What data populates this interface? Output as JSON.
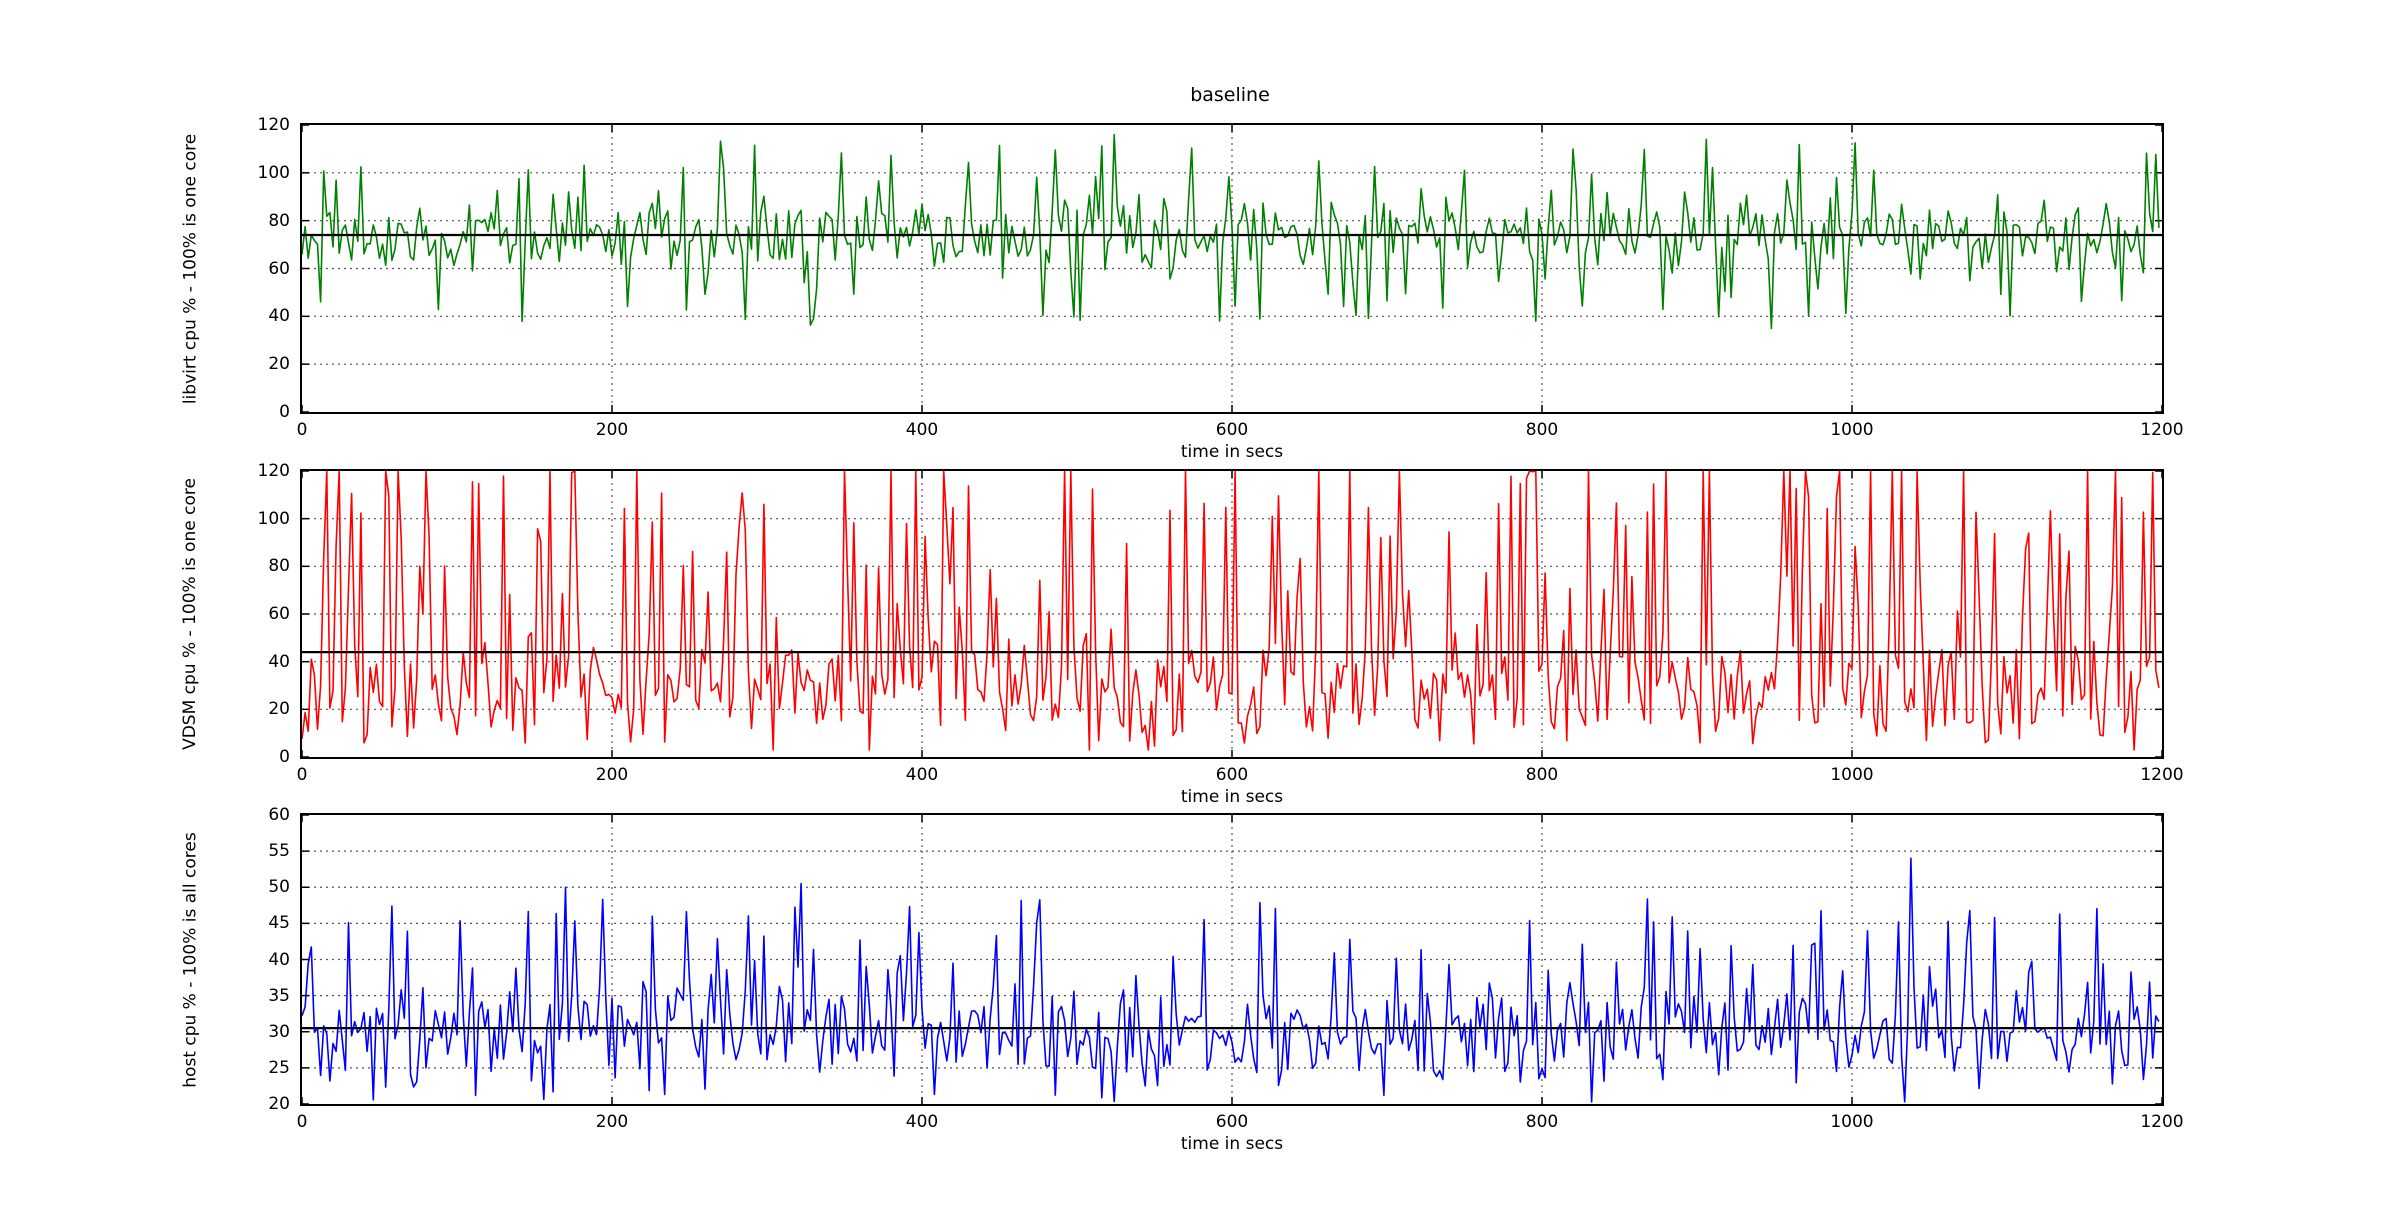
{
  "figure": {
    "background": "#ffffff",
    "title": "baseline"
  },
  "chart_data": [
    {
      "id": "libvirt-cpu",
      "type": "line",
      "title": "baseline",
      "xlabel": "time in secs",
      "ylabel": "libvirt cpu % - 100% is one core",
      "xlim": [
        0,
        1200
      ],
      "ylim": [
        0,
        120
      ],
      "xticks": [
        0,
        200,
        400,
        600,
        800,
        1000,
        1200
      ],
      "yticks": [
        0,
        20,
        40,
        60,
        80,
        100,
        120
      ],
      "grid": {
        "show": true,
        "style": "dotted",
        "color": "#555555"
      },
      "legend": "none",
      "mean_line": {
        "value": 74,
        "color": "#000000"
      },
      "series": {
        "name": "libvirt cpu %",
        "color": "#008000",
        "n": 600,
        "x_start": 0,
        "x_step": 2,
        "approx_mean": 74,
        "approx_range": [
          34,
          116
        ],
        "generator": {
          "seed": 42,
          "base": 74,
          "noise": 8.5,
          "spike_up_prob": 0.05,
          "spike_up": [
            22,
            40
          ],
          "spike_down_prob": 0.05,
          "spike_down": [
            22,
            38
          ],
          "min": 34,
          "max": 116
        },
        "forced_points": [
          {
            "x": 524,
            "y": 116
          },
          {
            "x": 906,
            "y": 114
          },
          {
            "x": 948,
            "y": 35
          }
        ]
      }
    },
    {
      "id": "vdsm-cpu",
      "type": "line",
      "title": "",
      "xlabel": "time in secs",
      "ylabel": "VDSM cpu % - 100% is one core",
      "xlim": [
        0,
        1200
      ],
      "ylim": [
        0,
        120
      ],
      "xticks": [
        0,
        200,
        400,
        600,
        800,
        1000,
        1200
      ],
      "yticks": [
        0,
        20,
        40,
        60,
        80,
        100,
        120
      ],
      "grid": {
        "show": true,
        "style": "dotted",
        "color": "#555555"
      },
      "legend": "none",
      "mean_line": {
        "value": 44,
        "color": "#000000"
      },
      "series": {
        "name": "VDSM cpu %",
        "color": "#ff0000",
        "n": 600,
        "x_start": 0,
        "x_step": 2,
        "approx_mean": 44,
        "approx_range": [
          3,
          120
        ],
        "generator": {
          "seed": 7,
          "base": 30,
          "noise": 12,
          "spike_up_prob": 0.24,
          "spike_up": [
            30,
            110
          ],
          "spike_down_prob": 0.05,
          "spike_down": [
            14,
            26
          ],
          "min": 3,
          "max": 120
        },
        "forced_points": []
      }
    },
    {
      "id": "host-cpu",
      "type": "line",
      "title": "",
      "xlabel": "time in secs",
      "ylabel": "host cpu % - 100% is all cores",
      "xlim": [
        0,
        1200
      ],
      "ylim": [
        20,
        60
      ],
      "xticks": [
        0,
        200,
        400,
        600,
        800,
        1000,
        1200
      ],
      "yticks": [
        20,
        25,
        30,
        35,
        40,
        45,
        50,
        55,
        60
      ],
      "grid": {
        "show": true,
        "style": "dotted",
        "color": "#555555"
      },
      "legend": "none",
      "mean_line": {
        "value": 30.5,
        "color": "#000000"
      },
      "series": {
        "name": "host cpu %",
        "color": "#0000ff",
        "n": 600,
        "x_start": 0,
        "x_step": 2,
        "approx_mean": 30.5,
        "approx_range": [
          20.3,
          54
        ],
        "generator": {
          "seed": 99,
          "base": 30,
          "noise": 4,
          "spike_up_prob": 0.1,
          "spike_up": [
            8,
            19
          ],
          "spike_down_prob": 0,
          "spike_down": [
            0,
            0
          ],
          "min": 20.3,
          "max": 50.5
        },
        "forced_points": [
          {
            "x": 170,
            "y": 50
          },
          {
            "x": 322,
            "y": 50.5
          },
          {
            "x": 1038,
            "y": 54
          }
        ]
      }
    }
  ]
}
